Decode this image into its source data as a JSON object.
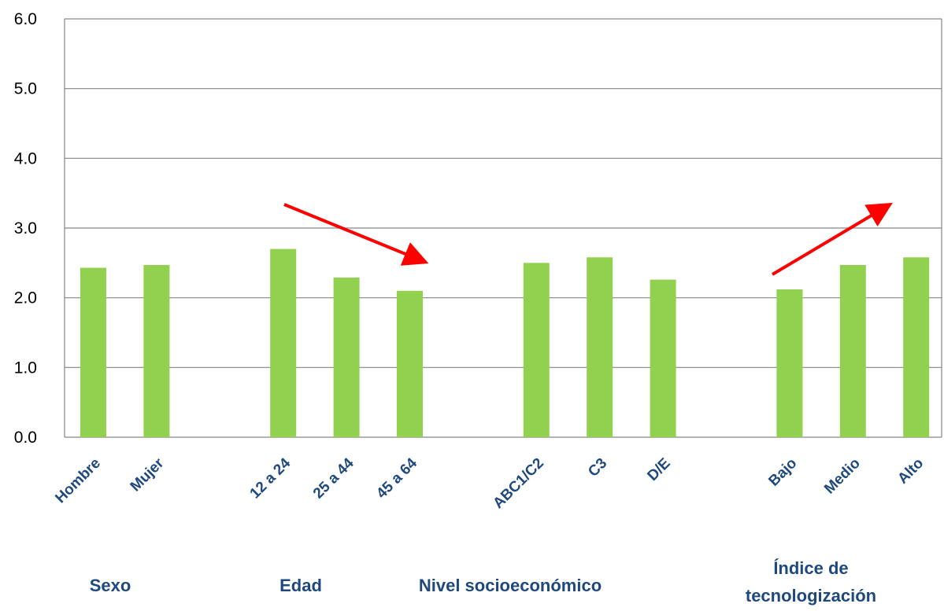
{
  "chart_data": {
    "type": "bar",
    "ylim": [
      0,
      6
    ],
    "yticks": [
      "0.0",
      "1.0",
      "2.0",
      "3.0",
      "4.0",
      "5.0",
      "6.0"
    ],
    "grid": true,
    "bar_color": "#92d050",
    "arrow_color": "#ff0000",
    "label_color": "#1f497d",
    "categories": [
      "Hombre",
      "Mujer",
      "12 a 24",
      "25 a 44",
      "45 a 64",
      "ABC1/C2",
      "C3",
      "D/E",
      "Bajo",
      "Medio",
      "Alto"
    ],
    "values": [
      2.43,
      2.47,
      2.7,
      2.29,
      2.1,
      2.5,
      2.58,
      2.26,
      2.12,
      2.47,
      2.58
    ],
    "groups": [
      {
        "label": "Sexo",
        "label_lines": [
          "Sexo"
        ]
      },
      {
        "label": "Edad",
        "label_lines": [
          "Edad"
        ]
      },
      {
        "label": "Nivel socioeconómico",
        "label_lines": [
          "Nivel socioeconómico"
        ]
      },
      {
        "label": "Índice de tecnologización",
        "label_lines": [
          "Índice de",
          "tecnologización"
        ]
      }
    ]
  }
}
